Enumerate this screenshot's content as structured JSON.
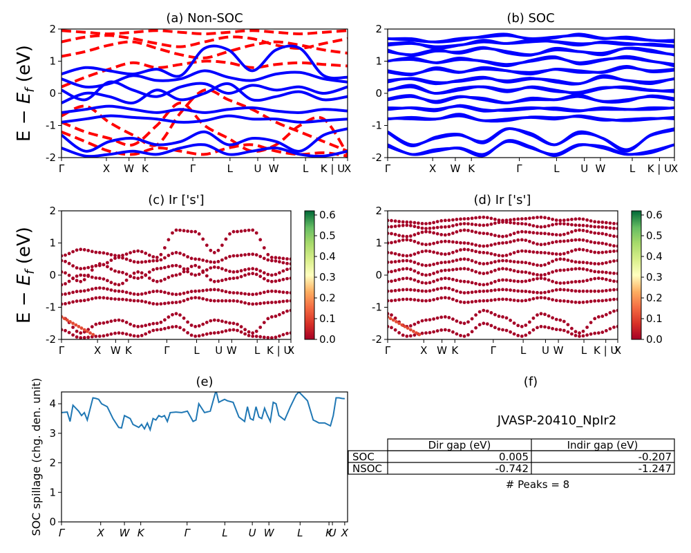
{
  "labels": {
    "energy_main": "E − ",
    "energy_var": "E",
    "energy_sub": "f",
    "energy_unit": " (eV)",
    "spillage_ylabel": "SOC spillage (chg. den. unit)"
  },
  "panels": {
    "a": {
      "title": "(a) Non-SOC"
    },
    "b": {
      "title": "(b) SOC"
    },
    "c": {
      "title": "(c)  Ir ['s']"
    },
    "d": {
      "title": "(d) Ir ['s']"
    },
    "e": {
      "title": "(e)"
    },
    "f": {
      "title": "(f)",
      "material": "JVASP-20410_NpIr2",
      "columns": [
        "Dir gap (eV)",
        "Indir gap (eV)"
      ],
      "rows": [
        {
          "label": "SOC",
          "dir": "0.005",
          "indir": "-0.207"
        },
        {
          "label": "NSOC",
          "dir": "-0.742",
          "indir": "-1.247"
        }
      ],
      "peaks": "# Peaks = 8"
    }
  },
  "chart_data": [
    {
      "panel": "a",
      "type": "line",
      "title": "(a) Non-SOC",
      "ylabel": "E − E_f (eV)",
      "ylim": [
        -2,
        2
      ],
      "yticks": [
        -2,
        -1,
        0,
        1,
        2
      ],
      "kpath_ticks": [
        {
          "label": "Γ",
          "pos": 0.0
        },
        {
          "label": "X",
          "pos": 0.157
        },
        {
          "label": "W",
          "pos": 0.236
        },
        {
          "label": "K",
          "pos": 0.292
        },
        {
          "label": "Γ",
          "pos": 0.459
        },
        {
          "label": "L",
          "pos": 0.589
        },
        {
          "label": "U",
          "pos": 0.686
        },
        {
          "label": "W",
          "pos": 0.742
        },
        {
          "label": "L",
          "pos": 0.853
        },
        {
          "label": "K | U",
          "pos": 0.948
        },
        {
          "label": "X",
          "pos": 1.0
        }
      ],
      "series": [
        {
          "style": "dashed",
          "color": "#ff0000",
          "bands": [
            [
              1.95,
              1.9,
              1.85,
              1.9,
              1.95,
              1.9,
              1.85,
              1.9,
              1.95,
              1.9,
              1.85,
              1.9,
              1.95
            ],
            [
              1.6,
              1.75,
              1.8,
              1.7,
              1.55,
              1.45,
              1.6,
              1.75,
              1.7,
              1.5,
              1.4,
              1.55,
              1.7
            ],
            [
              1.15,
              1.3,
              1.5,
              1.6,
              1.4,
              1.2,
              1.1,
              1.3,
              1.5,
              1.6,
              1.5,
              1.35,
              1.25
            ],
            [
              0.2,
              0.5,
              0.75,
              0.95,
              0.8,
              0.9,
              1.0,
              0.95,
              0.8,
              0.9,
              0.95,
              0.9,
              0.85
            ],
            [
              -0.7,
              -0.4,
              -0.9,
              -1.3,
              -1.6,
              -0.6,
              0.1,
              -0.2,
              -0.5,
              -0.9,
              -1.2,
              -1.5,
              -1.8
            ],
            [
              -0.9,
              -1.2,
              -1.4,
              -1.6,
              -1.0,
              -0.3,
              -1.0,
              -1.4,
              -1.8,
              -1.6,
              -1.0,
              -0.8,
              -1.9
            ],
            [
              -1.2,
              -1.5,
              -1.8,
              -1.9,
              -1.7,
              -1.8,
              -1.9,
              -1.7,
              -1.6,
              -1.8,
              -1.9,
              -1.85,
              -1.95
            ]
          ]
        },
        {
          "style": "solid",
          "color": "#0000ff",
          "bands": [
            [
              0.6,
              0.8,
              0.7,
              0.6,
              0.75,
              0.55,
              1.4,
              1.35,
              0.7,
              1.35,
              1.4,
              0.55,
              0.5
            ],
            [
              0.45,
              0.2,
              0.3,
              0.55,
              0.4,
              0.45,
              0.7,
              0.5,
              0.4,
              0.6,
              0.65,
              0.45,
              0.35
            ],
            [
              0.1,
              -0.2,
              0.35,
              0.1,
              -0.1,
              0.2,
              0.3,
              0.0,
              0.25,
              0.1,
              0.2,
              0.0,
              0.2
            ],
            [
              -0.3,
              0.0,
              -0.1,
              -0.3,
              0.1,
              -0.2,
              0.0,
              0.3,
              -0.2,
              -0.1,
              0.05,
              -0.2,
              -0.1
            ],
            [
              -0.6,
              -0.5,
              -0.4,
              -0.5,
              -0.6,
              -0.5,
              -0.6,
              -0.5,
              -0.45,
              -0.55,
              -0.6,
              -0.5,
              -0.55
            ],
            [
              -0.9,
              -0.8,
              -0.7,
              -0.75,
              -0.8,
              -0.9,
              -0.85,
              -0.7,
              -0.8,
              -0.8,
              -0.9,
              -0.85,
              -0.8
            ],
            [
              -1.3,
              -1.8,
              -1.5,
              -1.4,
              -1.6,
              -1.5,
              -1.2,
              -1.6,
              -1.4,
              -1.5,
              -1.8,
              -1.3,
              -1.1
            ],
            [
              -1.7,
              -1.95,
              -1.9,
              -1.8,
              -1.9,
              -1.7,
              -1.6,
              -1.9,
              -1.8,
              -1.7,
              -1.9,
              -1.95,
              -1.8
            ]
          ]
        }
      ]
    },
    {
      "panel": "b",
      "type": "line",
      "title": "(b) SOC",
      "ylim": [
        -2,
        2
      ],
      "yticks": [
        -2,
        -1,
        0,
        1,
        2
      ],
      "kpath_ticks": [
        {
          "label": "Γ",
          "pos": 0.0
        },
        {
          "label": "X",
          "pos": 0.157
        },
        {
          "label": "W",
          "pos": 0.236
        },
        {
          "label": "K",
          "pos": 0.292
        },
        {
          "label": "Γ",
          "pos": 0.459
        },
        {
          "label": "L",
          "pos": 0.589
        },
        {
          "label": "U",
          "pos": 0.686
        },
        {
          "label": "W",
          "pos": 0.742
        },
        {
          "label": "L",
          "pos": 0.853
        },
        {
          "label": "K | U",
          "pos": 0.948
        },
        {
          "label": "X",
          "pos": 1.0
        }
      ],
      "series": [
        {
          "style": "solid",
          "color": "#0000ff",
          "bands": [
            [
              1.7,
              1.65,
              1.6,
              1.7,
              1.75,
              1.8,
              1.7,
              1.75,
              1.8,
              1.7,
              1.75,
              1.65,
              1.6
            ],
            [
              1.5,
              1.55,
              1.45,
              1.5,
              1.6,
              1.55,
              1.65,
              1.6,
              1.5,
              1.6,
              1.55,
              1.5,
              1.45
            ],
            [
              1.3,
              1.2,
              1.35,
              1.25,
              1.4,
              1.3,
              1.2,
              1.35,
              1.3,
              1.25,
              1.4,
              1.3,
              1.2
            ],
            [
              1.0,
              1.1,
              0.95,
              1.05,
              1.0,
              0.9,
              1.0,
              1.1,
              0.95,
              1.05,
              1.1,
              1.0,
              0.9
            ],
            [
              0.7,
              0.6,
              0.75,
              0.65,
              0.8,
              0.7,
              0.6,
              0.75,
              0.7,
              0.65,
              0.8,
              0.7,
              0.75
            ],
            [
              0.4,
              0.45,
              0.3,
              0.4,
              0.5,
              0.35,
              0.45,
              0.4,
              0.3,
              0.5,
              0.4,
              0.35,
              0.45
            ],
            [
              0.1,
              0.2,
              0.0,
              0.15,
              0.2,
              0.05,
              0.2,
              0.1,
              0.0,
              0.15,
              0.2,
              0.1,
              0.05
            ],
            [
              -0.2,
              -0.1,
              -0.25,
              -0.1,
              -0.2,
              -0.3,
              -0.15,
              -0.2,
              -0.1,
              -0.25,
              -0.2,
              -0.1,
              -0.2
            ],
            [
              -0.5,
              -0.45,
              -0.5,
              -0.4,
              -0.55,
              -0.5,
              -0.45,
              -0.5,
              -0.55,
              -0.45,
              -0.5,
              -0.5,
              -0.45
            ],
            [
              -0.8,
              -0.75,
              -0.8,
              -0.7,
              -0.85,
              -0.8,
              -0.75,
              -0.8,
              -0.7,
              -0.8,
              -0.85,
              -0.8,
              -0.75
            ],
            [
              -1.2,
              -1.6,
              -1.4,
              -1.3,
              -1.5,
              -1.1,
              -1.3,
              -1.6,
              -1.2,
              -1.4,
              -1.8,
              -1.3,
              -1.1
            ],
            [
              -1.6,
              -1.9,
              -1.8,
              -1.7,
              -1.9,
              -1.5,
              -1.7,
              -1.9,
              -1.6,
              -1.7,
              -1.9,
              -1.8,
              -1.6
            ]
          ]
        }
      ]
    },
    {
      "panel": "c",
      "type": "scatter",
      "title": "(c)  Ir ['s']",
      "ylim": [
        -2,
        2
      ],
      "yticks": [
        -2,
        -1,
        0,
        1,
        2
      ],
      "colorbar": {
        "min": 0.0,
        "max": 0.6,
        "ticks": [
          "0.0",
          "0.1",
          "0.2",
          "0.3",
          "0.4",
          "0.5",
          "0.6"
        ]
      },
      "kpath_ticks": [
        {
          "label": "Γ",
          "pos": 0.0
        },
        {
          "label": "X",
          "pos": 0.157
        },
        {
          "label": "W",
          "pos": 0.236
        },
        {
          "label": "K",
          "pos": 0.292
        },
        {
          "label": "Γ",
          "pos": 0.459
        },
        {
          "label": "L",
          "pos": 0.589
        },
        {
          "label": "U",
          "pos": 0.686
        },
        {
          "label": "W",
          "pos": 0.742
        },
        {
          "label": "L",
          "pos": 0.853
        },
        {
          "label": "K | U",
          "pos": 0.948
        },
        {
          "label": "X",
          "pos": 1.0
        }
      ],
      "point_color": "#a50026"
    },
    {
      "panel": "d",
      "type": "scatter",
      "title": "(d) Ir ['s']",
      "ylim": [
        -2,
        2
      ],
      "yticks": [
        -2,
        -1,
        0,
        1,
        2
      ],
      "colorbar": {
        "min": 0.0,
        "max": 0.6,
        "ticks": [
          "0.0",
          "0.1",
          "0.2",
          "0.3",
          "0.4",
          "0.5",
          "0.6"
        ]
      },
      "kpath_ticks": [
        {
          "label": "Γ",
          "pos": 0.0
        },
        {
          "label": "X",
          "pos": 0.157
        },
        {
          "label": "W",
          "pos": 0.236
        },
        {
          "label": "K",
          "pos": 0.292
        },
        {
          "label": "Γ",
          "pos": 0.459
        },
        {
          "label": "L",
          "pos": 0.589
        },
        {
          "label": "U",
          "pos": 0.686
        },
        {
          "label": "W",
          "pos": 0.742
        },
        {
          "label": "L",
          "pos": 0.853
        },
        {
          "label": "K | U",
          "pos": 0.948
        },
        {
          "label": "X",
          "pos": 1.0
        }
      ],
      "point_color": "#a50026"
    },
    {
      "panel": "e",
      "type": "line",
      "title": "(e)",
      "ylabel": "SOC spillage (chg. den. unit)",
      "ylim": [
        0,
        4.4
      ],
      "yticks": [
        0,
        1,
        2,
        3,
        4
      ],
      "kpath_ticks": [
        {
          "label": "Γ",
          "pos": 0.0
        },
        {
          "label": "X",
          "pos": 0.137
        },
        {
          "label": "W",
          "pos": 0.22
        },
        {
          "label": "K",
          "pos": 0.277
        },
        {
          "label": "Γ",
          "pos": 0.439
        },
        {
          "label": "L",
          "pos": 0.571
        },
        {
          "label": "U",
          "pos": 0.667
        },
        {
          "label": "W",
          "pos": 0.725
        },
        {
          "label": "L",
          "pos": 0.834
        },
        {
          "label": "K",
          "pos": 0.935
        },
        {
          "label": "U",
          "pos": 0.947
        },
        {
          "label": "X",
          "pos": 0.99
        }
      ],
      "color": "#1f77b4",
      "x": [
        0.0,
        0.02,
        0.03,
        0.04,
        0.06,
        0.07,
        0.08,
        0.09,
        0.11,
        0.12,
        0.13,
        0.14,
        0.16,
        0.18,
        0.2,
        0.21,
        0.22,
        0.23,
        0.24,
        0.25,
        0.27,
        0.28,
        0.29,
        0.3,
        0.31,
        0.32,
        0.33,
        0.34,
        0.35,
        0.36,
        0.37,
        0.38,
        0.4,
        0.42,
        0.44,
        0.46,
        0.47,
        0.48,
        0.5,
        0.52,
        0.54,
        0.55,
        0.56,
        0.57,
        0.58,
        0.6,
        0.62,
        0.64,
        0.65,
        0.66,
        0.67,
        0.68,
        0.69,
        0.7,
        0.71,
        0.72,
        0.73,
        0.74,
        0.75,
        0.76,
        0.78,
        0.8,
        0.82,
        0.83,
        0.84,
        0.85,
        0.86,
        0.88,
        0.89,
        0.9,
        0.92,
        0.94,
        0.95,
        0.96,
        0.97,
        0.98,
        0.99
      ],
      "values": [
        3.7,
        3.72,
        3.4,
        3.95,
        3.75,
        3.6,
        3.7,
        3.45,
        4.2,
        4.18,
        4.15,
        4.0,
        3.9,
        3.5,
        3.2,
        3.18,
        3.6,
        3.55,
        3.5,
        3.3,
        3.2,
        3.3,
        3.15,
        3.35,
        3.12,
        3.5,
        3.45,
        3.6,
        3.55,
        3.6,
        3.4,
        3.7,
        3.72,
        3.7,
        3.75,
        3.4,
        3.45,
        4.0,
        3.7,
        3.75,
        4.45,
        4.05,
        4.1,
        4.15,
        4.1,
        4.05,
        3.55,
        3.4,
        3.9,
        3.5,
        3.45,
        3.9,
        3.55,
        3.5,
        3.85,
        3.6,
        3.4,
        4.05,
        4.0,
        3.6,
        3.45,
        3.9,
        4.3,
        4.4,
        4.3,
        4.2,
        4.1,
        3.45,
        3.4,
        3.35,
        3.35,
        3.25,
        3.6,
        4.2,
        4.2,
        4.18,
        4.17
      ]
    }
  ]
}
